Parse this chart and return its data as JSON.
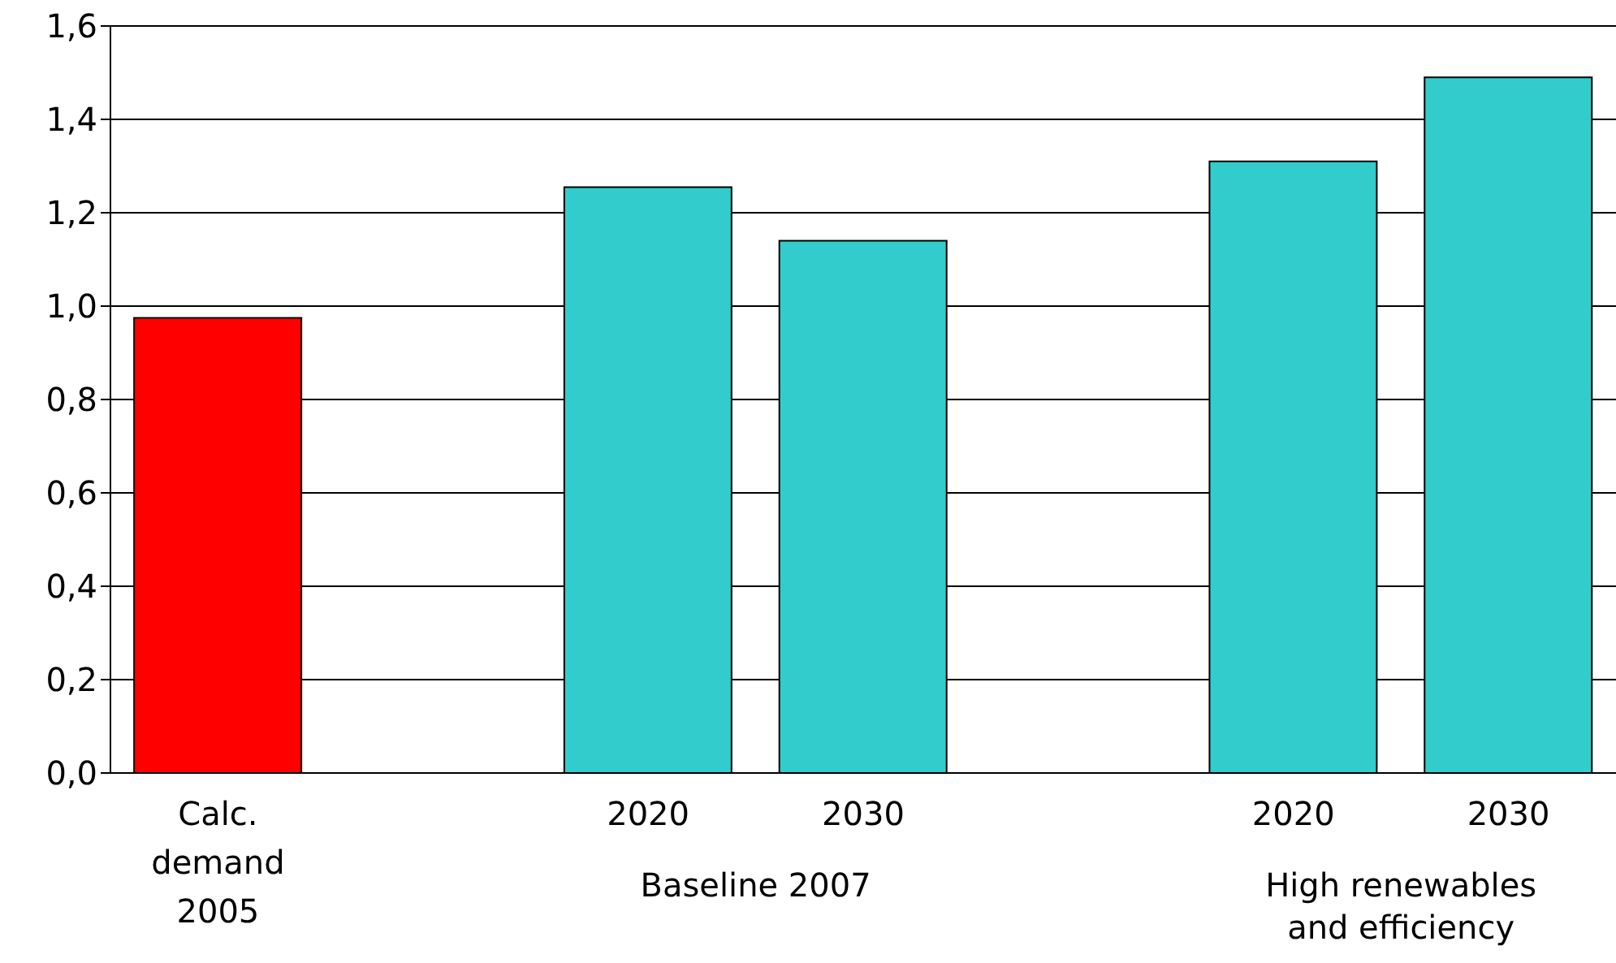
{
  "chart_data": {
    "type": "bar",
    "categories": [
      "Calc. demand 2005",
      null,
      "2020",
      "2030",
      null,
      "2020",
      "2030"
    ],
    "values": [
      0.975,
      null,
      1.255,
      1.14,
      null,
      1.31,
      1.49
    ],
    "colors": [
      "#ff0000",
      null,
      "#33cccc",
      "#33cccc",
      null,
      "#33cccc",
      "#33cccc"
    ],
    "ylim": [
      0,
      1.6
    ],
    "yticks": [
      {
        "value": 0,
        "label": "0,0"
      },
      {
        "value": 0.2,
        "label": "0,2"
      },
      {
        "value": 0.4,
        "label": "0,4"
      },
      {
        "value": 0.6,
        "label": "0,6"
      },
      {
        "value": 0.8,
        "label": "0,8"
      },
      {
        "value": 1.0,
        "label": "1,0"
      },
      {
        "value": 1.2,
        "label": "1,2"
      },
      {
        "value": 1.4,
        "label": "1,4"
      },
      {
        "value": 1.6,
        "label": "1,6"
      }
    ],
    "grid": "y",
    "annotations": [
      "Baseline 2007",
      "High renewables and efficiency"
    ]
  }
}
